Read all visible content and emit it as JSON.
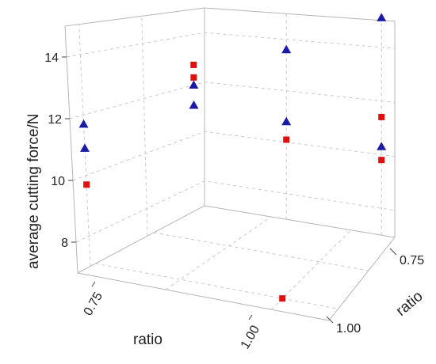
{
  "chart_data": {
    "type": "scatter3d",
    "grid": true,
    "axes": {
      "z": {
        "label": "average cutting force/N",
        "ticks": [
          "8",
          "10",
          "12",
          "14"
        ],
        "range": [
          7,
          15
        ]
      },
      "front": {
        "label": "ratio",
        "ticks": [
          "0.75",
          "1.00"
        ]
      },
      "right": {
        "label": "ratio",
        "ticks": [
          "0.75",
          "1.00"
        ]
      }
    },
    "series": [
      {
        "marker": "triangle",
        "color": "#1a1aa8",
        "points": [
          {
            "wall": "left",
            "h": 0.1,
            "z": 11.7
          },
          {
            "wall": "left",
            "h": 0.1,
            "z": 10.9
          },
          {
            "wall": "left",
            "h": 0.92,
            "z": 12.0
          },
          {
            "wall": "left",
            "h": 0.92,
            "z": 11.2
          },
          {
            "wall": "back",
            "h": 0.43,
            "z": 13.6
          },
          {
            "wall": "back",
            "h": 0.43,
            "z": 10.8
          },
          {
            "wall": "back",
            "h": 0.93,
            "z": 15.1
          },
          {
            "wall": "back",
            "h": 0.93,
            "z": 10.3
          }
        ]
      },
      {
        "marker": "square",
        "color": "#e01010",
        "points": [
          {
            "wall": "left",
            "h": 0.1,
            "z": 9.7
          },
          {
            "wall": "left",
            "h": 0.92,
            "z": 12.8
          },
          {
            "wall": "left",
            "h": 0.92,
            "z": 12.3
          },
          {
            "wall": "back",
            "h": 0.43,
            "z": 10.1
          },
          {
            "wall": "back",
            "h": 0.93,
            "z": 11.4
          },
          {
            "wall": "back",
            "h": 0.93,
            "z": 9.8
          },
          {
            "wall": "floor",
            "u": 0.77,
            "v": 0.14,
            "z": 7.0
          }
        ]
      }
    ]
  }
}
